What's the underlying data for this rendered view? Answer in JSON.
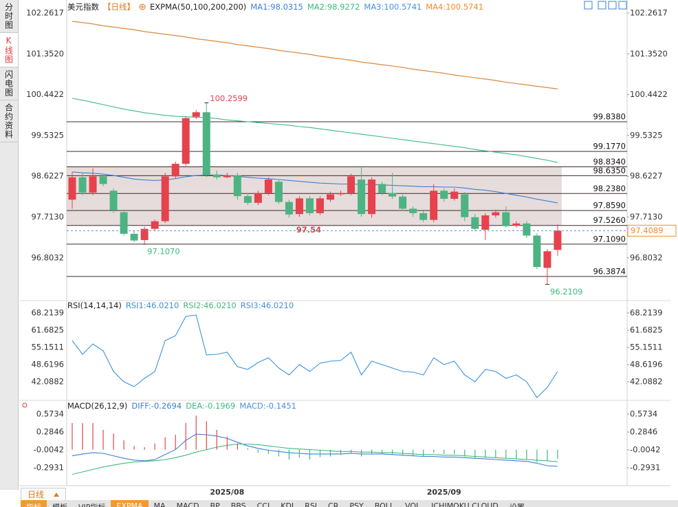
{
  "sidebar": {
    "tabs": [
      {
        "label": "分时图",
        "active": false
      },
      {
        "label": "K线图",
        "active": true
      },
      {
        "label": "闪电图",
        "active": false
      },
      {
        "label": "合约资料",
        "active": false
      }
    ]
  },
  "chart_data": [
    {
      "type": "candlestick",
      "title": "美元指数",
      "period": "【日线】",
      "indicator": "EXPMA(50,100,200,200)",
      "categories": [
        null,
        null,
        null,
        null,
        null,
        null,
        null,
        null,
        null,
        null,
        null,
        null,
        null,
        null,
        null,
        "2025/08",
        null,
        null,
        null,
        null,
        null,
        null,
        null,
        null,
        null,
        null,
        null,
        null,
        null,
        null,
        null,
        null,
        null,
        null,
        null,
        null,
        "2025/09",
        null,
        null,
        null,
        null,
        null,
        null,
        null,
        null,
        null,
        null,
        null
      ],
      "open": [
        98.1,
        98.6,
        98.26,
        98.62,
        98.3,
        97.82,
        97.34,
        97.2,
        97.45,
        97.62,
        98.62,
        98.9,
        99.95,
        100.05,
        98.66,
        98.6,
        98.64,
        98.18,
        98.03,
        98.25,
        98.5,
        98.05,
        97.78,
        98.13,
        97.8,
        98.1,
        98.22,
        98.25,
        98.55,
        97.78,
        98.45,
        98.25,
        98.17,
        97.9,
        97.8,
        97.65,
        98.3,
        98.12,
        98.22,
        97.71,
        97.43,
        97.75,
        97.82,
        97.52,
        97.57,
        97.3,
        96.58,
        96.98
      ],
      "high": [
        98.72,
        98.7,
        98.8,
        98.68,
        98.35,
        97.88,
        97.4,
        97.5,
        97.66,
        98.7,
        98.95,
        99.95,
        100.1,
        100.2599,
        98.75,
        98.7,
        98.7,
        98.25,
        98.3,
        98.6,
        98.55,
        98.1,
        98.18,
        98.18,
        98.18,
        98.28,
        98.3,
        98.68,
        98.85,
        98.6,
        98.5,
        98.7,
        98.22,
        97.95,
        97.85,
        98.45,
        98.35,
        98.35,
        98.27,
        97.78,
        97.8,
        97.88,
        97.95,
        97.62,
        97.62,
        97.35,
        97.0,
        97.55
      ],
      "low": [
        97.9,
        98.2,
        98.2,
        98.4,
        97.8,
        97.3,
        97.15,
        97.107,
        97.4,
        97.58,
        98.58,
        98.85,
        99.9,
        98.6,
        98.55,
        98.58,
        98.1,
        97.98,
        97.98,
        98.2,
        98.0,
        97.7,
        97.72,
        97.75,
        97.76,
        98.05,
        98.18,
        98.2,
        97.72,
        97.7,
        98.2,
        98.12,
        97.85,
        97.72,
        97.6,
        97.6,
        98.05,
        98.08,
        97.62,
        97.4,
        97.2,
        97.7,
        97.48,
        97.48,
        97.25,
        96.55,
        96.2109,
        96.85
      ],
      "close": [
        98.6,
        98.26,
        98.62,
        98.45,
        97.87,
        97.34,
        97.19,
        97.45,
        97.62,
        98.62,
        98.9,
        99.92,
        100.05,
        98.65,
        98.6,
        98.64,
        98.18,
        98.03,
        98.25,
        98.55,
        98.05,
        97.77,
        98.13,
        97.8,
        98.13,
        98.22,
        98.25,
        98.62,
        97.78,
        98.55,
        98.25,
        98.17,
        97.9,
        97.8,
        97.65,
        98.3,
        98.12,
        98.28,
        97.71,
        97.45,
        97.75,
        97.82,
        97.51,
        97.57,
        97.3,
        96.6,
        96.95,
        97.4089
      ],
      "up_color": "#e5424d",
      "down_color": "#4db383",
      "series": [
        {
          "name": "MA1:98.0315",
          "color": "#3f7fd6",
          "values": [
            98.72,
            98.7,
            98.69,
            98.67,
            98.64,
            98.6,
            98.56,
            98.54,
            98.53,
            98.54,
            98.57,
            98.61,
            98.64,
            98.65,
            98.65,
            98.64,
            98.62,
            98.6,
            98.58,
            98.57,
            98.55,
            98.53,
            98.51,
            98.49,
            98.47,
            98.46,
            98.45,
            98.45,
            98.44,
            98.44,
            98.43,
            98.42,
            98.41,
            98.4,
            98.39,
            98.39,
            98.38,
            98.38,
            98.36,
            98.33,
            98.31,
            98.28,
            98.24,
            98.2,
            98.16,
            98.11,
            98.07,
            98.03
          ]
        },
        {
          "name": "MA2:98.9272",
          "color": "#3dba7e",
          "values": [
            100.36,
            100.32,
            100.27,
            100.22,
            100.17,
            100.12,
            100.08,
            100.04,
            100.01,
            99.98,
            99.96,
            99.95,
            99.94,
            99.93,
            99.91,
            99.88,
            99.86,
            99.84,
            99.82,
            99.8,
            99.78,
            99.76,
            99.73,
            99.71,
            99.68,
            99.65,
            99.62,
            99.59,
            99.56,
            99.53,
            99.5,
            99.47,
            99.44,
            99.41,
            99.38,
            99.35,
            99.32,
            99.29,
            99.26,
            99.22,
            99.19,
            99.16,
            99.13,
            99.1,
            99.06,
            99.02,
            98.98,
            98.93
          ]
        },
        {
          "name": "MA3:100.5741",
          "color": "#4a8fe0",
          "values": [
            102.08,
            102.05,
            102.02,
            101.98,
            101.95,
            101.92,
            101.89,
            101.85,
            101.82,
            101.79,
            101.76,
            101.73,
            101.69,
            101.66,
            101.63,
            101.6,
            101.56,
            101.53,
            101.5,
            101.47,
            101.43,
            101.4,
            101.37,
            101.34,
            101.3,
            101.27,
            101.24,
            101.21,
            101.17,
            101.14,
            101.11,
            101.08,
            101.05,
            101.01,
            100.98,
            100.95,
            100.92,
            100.88,
            100.85,
            100.82,
            100.79,
            100.76,
            100.72,
            100.69,
            100.66,
            100.63,
            100.6,
            100.57
          ]
        },
        {
          "name": "MA4:100.5741",
          "color": "#f08a2c",
          "values": [
            102.08,
            102.05,
            102.02,
            101.98,
            101.95,
            101.92,
            101.89,
            101.85,
            101.82,
            101.79,
            101.76,
            101.73,
            101.69,
            101.66,
            101.63,
            101.6,
            101.56,
            101.53,
            101.5,
            101.47,
            101.43,
            101.4,
            101.37,
            101.34,
            101.3,
            101.27,
            101.24,
            101.21,
            101.17,
            101.14,
            101.11,
            101.08,
            101.05,
            101.01,
            100.98,
            100.95,
            100.92,
            100.88,
            100.85,
            100.82,
            100.79,
            100.76,
            100.72,
            100.69,
            100.66,
            100.63,
            100.6,
            100.57
          ]
        }
      ],
      "ylim": [
        95.88,
        102.4
      ],
      "yticks": [
        102.2617,
        {
          "value": 101.352,
          "label": "101.3520"
        },
        100.4422,
        99.5325,
        98.6227,
        {
          "value": 97.713,
          "label": "97.7130"
        },
        96.8032
      ],
      "levels": [
        {
          "value": 99.838,
          "label": "99.8380"
        },
        {
          "value": 99.177,
          "label": "99.1770"
        },
        {
          "value": 98.834,
          "label": "98.8340"
        },
        {
          "value": 98.635,
          "label": "98.6350"
        },
        {
          "value": 98.238,
          "label": "98.2380"
        },
        {
          "value": 97.859,
          "label": "97.8590"
        },
        {
          "value": 97.526,
          "label": "97.5260"
        },
        {
          "value": 97.109,
          "label": "97.1090"
        },
        96.3874
      ],
      "zone": {
        "top": 98.834,
        "bottom": 97.526,
        "label": 97.54,
        "color": "#dccdcc"
      },
      "last_price": 97.4089,
      "high_label": 100.2599,
      "low_labels": [
        {
          "value": 97.107,
          "label": "97.1070"
        },
        96.2109
      ]
    },
    {
      "type": "line",
      "title": "RSI(14,14,14)",
      "series": [
        {
          "name": "RSI1:46.0210",
          "color": "#3a93dc",
          "values": [
            57.76,
            52.54,
            56.46,
            53.85,
            46.01,
            42.09,
            40.26,
            43.4,
            46.01,
            57.76,
            59.59,
            66.91,
            67.43,
            52.28,
            52.54,
            53.32,
            47.84,
            46.79,
            49.4,
            51.23,
            47.31,
            44.7,
            48.62,
            46.01,
            49.14,
            49.93,
            50.19,
            53.32,
            44.7,
            49.93,
            48.62,
            47.31,
            46.01,
            45.75,
            44.7,
            51.23,
            48.62,
            49.93,
            44.7,
            42.09,
            46.79,
            46.01,
            43.4,
            44.7,
            42.09,
            36.08,
            40.0,
            46.021
          ]
        }
      ],
      "legend_extra": [
        {
          "name": "RSI2:46.0210",
          "color": "#3dba7e"
        },
        {
          "name": "RSI3:46.0210",
          "color": "#4a8fe0"
        }
      ],
      "ylim": [
        35.56,
        72.13
      ],
      "yticks": [
        68.2139,
        61.6825,
        55.1511,
        48.6196,
        42.0882
      ]
    },
    {
      "type": "macd",
      "title": "MACD(26,12,9)",
      "series": [
        {
          "name": "DIFF:-0.2694",
          "style": "line",
          "color": "#3a7fd8",
          "values": [
            -0.1,
            -0.07,
            -0.05,
            -0.06,
            -0.1,
            -0.14,
            -0.17,
            -0.18,
            -0.16,
            -0.08,
            0.0,
            0.15,
            0.25,
            0.24,
            0.22,
            0.18,
            0.12,
            0.06,
            0.02,
            -0.01,
            -0.03,
            -0.05,
            -0.06,
            -0.07,
            -0.07,
            -0.07,
            -0.07,
            -0.06,
            -0.07,
            -0.07,
            -0.07,
            -0.08,
            -0.09,
            -0.1,
            -0.11,
            -0.11,
            -0.12,
            -0.12,
            -0.13,
            -0.14,
            -0.15,
            -0.16,
            -0.17,
            -0.18,
            -0.19,
            -0.22,
            -0.26,
            -0.2694
          ]
        },
        {
          "name": "DEA:-0.1969",
          "style": "line",
          "color": "#3dba7e",
          "values": [
            -0.4,
            -0.36,
            -0.32,
            -0.28,
            -0.25,
            -0.22,
            -0.2,
            -0.19,
            -0.18,
            -0.16,
            -0.13,
            -0.09,
            -0.04,
            0.0,
            0.04,
            0.07,
            0.09,
            0.09,
            0.08,
            0.06,
            0.04,
            0.02,
            0.01,
            0.0,
            -0.01,
            -0.02,
            -0.03,
            -0.03,
            -0.04,
            -0.04,
            -0.05,
            -0.05,
            -0.06,
            -0.07,
            -0.08,
            -0.08,
            -0.09,
            -0.09,
            -0.1,
            -0.11,
            -0.12,
            -0.13,
            -0.14,
            -0.15,
            -0.16,
            -0.17,
            -0.18,
            -0.1969
          ]
        },
        {
          "name": "MACD:-0.1451",
          "style": "bar",
          "color": "#e5424d",
          "negative_color": "#3dba7e",
          "label_color": "#4a8fe0",
          "values": [
            0.43,
            0.43,
            0.43,
            0.32,
            0.26,
            0.15,
            0.06,
            0.04,
            0.1,
            0.2,
            0.24,
            0.43,
            0.55,
            0.46,
            0.32,
            0.21,
            0.1,
            0.02,
            -0.05,
            -0.07,
            -0.11,
            -0.16,
            -0.13,
            -0.16,
            -0.12,
            -0.11,
            -0.09,
            -0.07,
            -0.11,
            -0.07,
            -0.07,
            -0.08,
            -0.09,
            -0.09,
            -0.11,
            -0.05,
            -0.07,
            -0.07,
            -0.11,
            -0.14,
            -0.13,
            -0.13,
            -0.14,
            -0.15,
            -0.16,
            -0.2,
            -0.18,
            -0.1451
          ]
        }
      ],
      "ylim": [
        -0.5709,
        0.7623
      ],
      "yticks": [
        0.5734,
        0.2846,
        -0.0042,
        -0.2931
      ]
    }
  ],
  "toolbar": {
    "period": "日线",
    "tabs": [
      {
        "label": "指标",
        "active": true
      },
      {
        "label": "模板",
        "active": false
      },
      {
        "label": "VIP指标",
        "active": false
      },
      {
        "label": "EXPMA",
        "active": true
      },
      {
        "label": "MA",
        "active": false
      },
      {
        "label": "MACD",
        "active": false
      },
      {
        "label": "BP",
        "active": false
      },
      {
        "label": "BBS",
        "active": false
      },
      {
        "label": "CCI",
        "active": false
      },
      {
        "label": "KDJ",
        "active": false
      },
      {
        "label": "RSI",
        "active": false
      },
      {
        "label": "CR",
        "active": false
      },
      {
        "label": "PSY",
        "active": false
      },
      {
        "label": "BOLL",
        "active": false
      },
      {
        "label": "VOL",
        "active": false
      },
      {
        "label": "ICHIMOKU CLOUD",
        "active": false
      },
      {
        "label": "设置",
        "active": false
      }
    ]
  }
}
